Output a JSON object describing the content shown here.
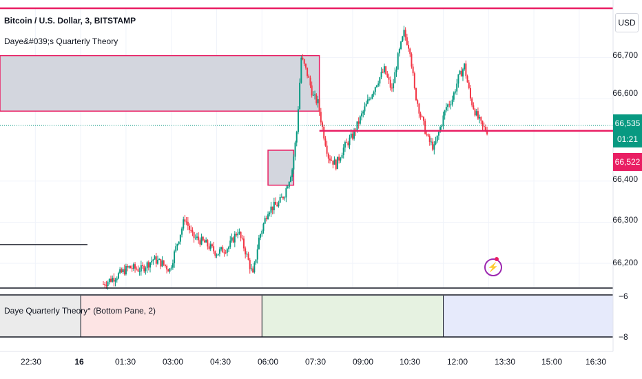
{
  "header": {
    "title": "Bitcoin / U.S. Dollar, 3, BITSTAMP",
    "indicator": "Daye&#039;s Quarterly Theory",
    "currency": "USD"
  },
  "price_tags": {
    "last_price": "66,535",
    "countdown": "01:21",
    "reference_price": "66,522"
  },
  "bottom_pane": {
    "label": "Daye Quarterly Theory° (Bottom Pane, 2)",
    "ticks": [
      "−6",
      "−8"
    ]
  },
  "colors": {
    "up": "#089981",
    "down": "#f23645",
    "level": "#e91e63",
    "box_fill": "#d1d4dc",
    "q1": "#ebebeb",
    "q2": "#fde4e4",
    "q3": "#e6f2e1",
    "q4": "#e6eafb"
  },
  "chart_data": {
    "type": "candlestick",
    "title": "Bitcoin / U.S. Dollar, 3, BITSTAMP",
    "y_tick_labels": [
      "66,700",
      "66,600",
      "66,400",
      "66,300",
      "66,200"
    ],
    "y_ticks": [
      66700,
      66600,
      66400,
      66300,
      66200
    ],
    "ylim": [
      66140,
      66820
    ],
    "x_tick_labels": [
      "22:30",
      "16",
      "01:30",
      "03:00",
      "04:30",
      "06:00",
      "07:30",
      "09:00",
      "10:30",
      "12:00",
      "13:30",
      "15:00",
      "16:30"
    ],
    "x_ticks_hours": [
      -1.5,
      0,
      1.5,
      3,
      4.5,
      6,
      7.5,
      9,
      10.5,
      12,
      13.5,
      15,
      16.5
    ],
    "xlim_hours": [
      -2.67,
      17.62
    ],
    "horizontal_level": 66522,
    "last_price": 66535,
    "boxes": [
      {
        "x0_hours": -2.67,
        "x1_hours": 7.9,
        "low": 66570,
        "high": 66705
      },
      {
        "x0_hours": 6.2,
        "x1_hours": 7.05,
        "low": 66390,
        "high": 66475
      }
    ],
    "bottom_pane_segments": [
      {
        "from_hours": -2.67,
        "to_hours": 0.0
      },
      {
        "from_hours": 0.0,
        "to_hours": 6.0
      },
      {
        "from_hours": 6.0,
        "to_hours": 12.0
      },
      {
        "from_hours": 12.0,
        "to_hours": 17.62
      }
    ],
    "close_path": [
      [
        0.75,
        66150
      ],
      [
        1.2,
        66170
      ],
      [
        1.6,
        66190
      ],
      [
        2.0,
        66185
      ],
      [
        2.4,
        66210
      ],
      [
        2.7,
        66200
      ],
      [
        2.95,
        66185
      ],
      [
        3.2,
        66250
      ],
      [
        3.45,
        66310
      ],
      [
        3.7,
        66265
      ],
      [
        4.1,
        66250
      ],
      [
        4.5,
        66225
      ],
      [
        4.9,
        66240
      ],
      [
        5.2,
        66280
      ],
      [
        5.45,
        66230
      ],
      [
        5.7,
        66170
      ],
      [
        5.9,
        66260
      ],
      [
        6.2,
        66330
      ],
      [
        6.55,
        66345
      ],
      [
        6.75,
        66370
      ],
      [
        7.0,
        66430
      ],
      [
        7.15,
        66520
      ],
      [
        7.3,
        66700
      ],
      [
        7.5,
        66660
      ],
      [
        7.7,
        66605
      ],
      [
        7.85,
        66590
      ],
      [
        8.0,
        66530
      ],
      [
        8.2,
        66460
      ],
      [
        8.45,
        66440
      ],
      [
        8.7,
        66480
      ],
      [
        9.0,
        66510
      ],
      [
        9.3,
        66560
      ],
      [
        9.55,
        66600
      ],
      [
        9.8,
        66640
      ],
      [
        10.05,
        66670
      ],
      [
        10.3,
        66620
      ],
      [
        10.5,
        66700
      ],
      [
        10.7,
        66760
      ],
      [
        10.9,
        66720
      ],
      [
        11.05,
        66620
      ],
      [
        11.25,
        66560
      ],
      [
        11.5,
        66500
      ],
      [
        11.7,
        66480
      ],
      [
        11.9,
        66530
      ],
      [
        12.1,
        66580
      ],
      [
        12.3,
        66600
      ],
      [
        12.5,
        66650
      ],
      [
        12.7,
        66680
      ],
      [
        12.9,
        66600
      ],
      [
        13.1,
        66560
      ],
      [
        13.3,
        66530
      ],
      [
        13.5,
        66520
      ]
    ]
  }
}
